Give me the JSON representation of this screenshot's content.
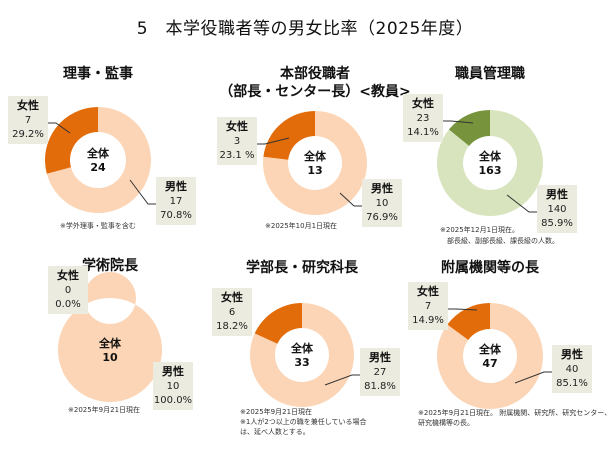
{
  "page": {
    "title": "5　本学役職者等の男女比率（2025年度）"
  },
  "colors": {
    "female_orange": "#e36c0a",
    "male_peach": "#fbd5b5",
    "female_green": "#77933c",
    "male_green": "#d7e4bd",
    "label_bg": "#ecebe0"
  },
  "chart_data": [
    {
      "type": "pie",
      "id": "executives",
      "title_lines": [
        "理事・監事"
      ],
      "center_label": "全体",
      "total": 24,
      "palette": "orange",
      "slices": [
        {
          "name": "女性",
          "value": 7,
          "percent": "29.2%"
        },
        {
          "name": "男性",
          "value": 17,
          "percent": "70.8%"
        }
      ],
      "notes": [
        "※学外理事・監事を含む"
      ]
    },
    {
      "type": "pie",
      "id": "hq-officers",
      "title_lines": [
        "本部役職者",
        "（部長・センター長）<教員>"
      ],
      "center_label": "全体",
      "total": 13,
      "palette": "orange",
      "slices": [
        {
          "name": "女性",
          "value": 3,
          "percent": "23.1 %"
        },
        {
          "name": "男性",
          "value": 10,
          "percent": "76.9%"
        }
      ],
      "notes": [
        "※2025年10月1日現在"
      ]
    },
    {
      "type": "pie",
      "id": "staff-managers",
      "title_lines": [
        "職員管理職"
      ],
      "center_label": "全体",
      "total": 163,
      "palette": "green",
      "slices": [
        {
          "name": "女性",
          "value": 23,
          "percent": "14.1%"
        },
        {
          "name": "男性",
          "value": 140,
          "percent": "85.9%"
        }
      ],
      "notes": [
        "※2025年12月1日現在。",
        "　部長級、副部長級、課長級の人数。"
      ]
    },
    {
      "type": "pie",
      "id": "academic-deans",
      "title_lines": [
        "学術院長"
      ],
      "center_label": "全体",
      "total": 10,
      "palette": "orange",
      "slices": [
        {
          "name": "女性",
          "value": 0,
          "percent": "0.0%"
        },
        {
          "name": "男性",
          "value": 10,
          "percent": "100.0%"
        }
      ],
      "notes": [
        "※2025年9月21日現在"
      ]
    },
    {
      "type": "pie",
      "id": "faculty-deans",
      "title_lines": [
        "学部長・研究科長"
      ],
      "center_label": "全体",
      "total": 33,
      "palette": "orange",
      "slices": [
        {
          "name": "女性",
          "value": 6,
          "percent": "18.2%"
        },
        {
          "name": "男性",
          "value": 27,
          "percent": "81.8%"
        }
      ],
      "notes": [
        "※2025年9月21日現在",
        "※1人が2つ以上の職を兼任している場合",
        "は、延べ人数とする。"
      ]
    },
    {
      "type": "pie",
      "id": "affiliated-heads",
      "title_lines": [
        "附属機関等の長"
      ],
      "center_label": "全体",
      "total": 47,
      "palette": "orange",
      "slices": [
        {
          "name": "女性",
          "value": 7,
          "percent": "14.9%"
        },
        {
          "name": "男性",
          "value": 40,
          "percent": "85.1%"
        }
      ],
      "notes": [
        "※2025年9月21日現在。 附属機関、研究所、研究センター、",
        "研究機構等の長。"
      ]
    }
  ]
}
